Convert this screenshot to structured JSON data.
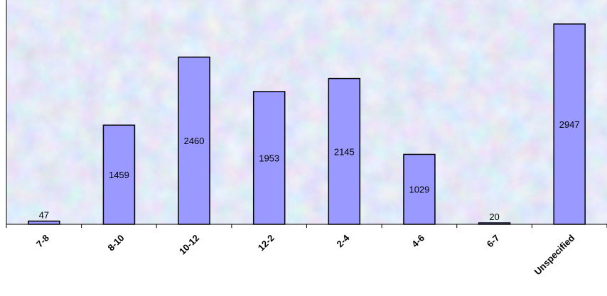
{
  "chart_data": {
    "type": "bar",
    "title": "",
    "xlabel": "",
    "ylabel": "",
    "categories": [
      "7-8",
      "8-10",
      "10-12",
      "12-2",
      "2-4",
      "4-6",
      "6-7",
      "Unspecified"
    ],
    "values": [
      47,
      1459,
      2460,
      1953,
      2145,
      1029,
      20,
      2947
    ],
    "ylim": [
      0,
      3300
    ],
    "grid": false,
    "legend": "none",
    "colors": {
      "bar_fill": "#9999ff",
      "bar_stroke": "#000000",
      "plot_background": "#c4cfe8"
    }
  }
}
